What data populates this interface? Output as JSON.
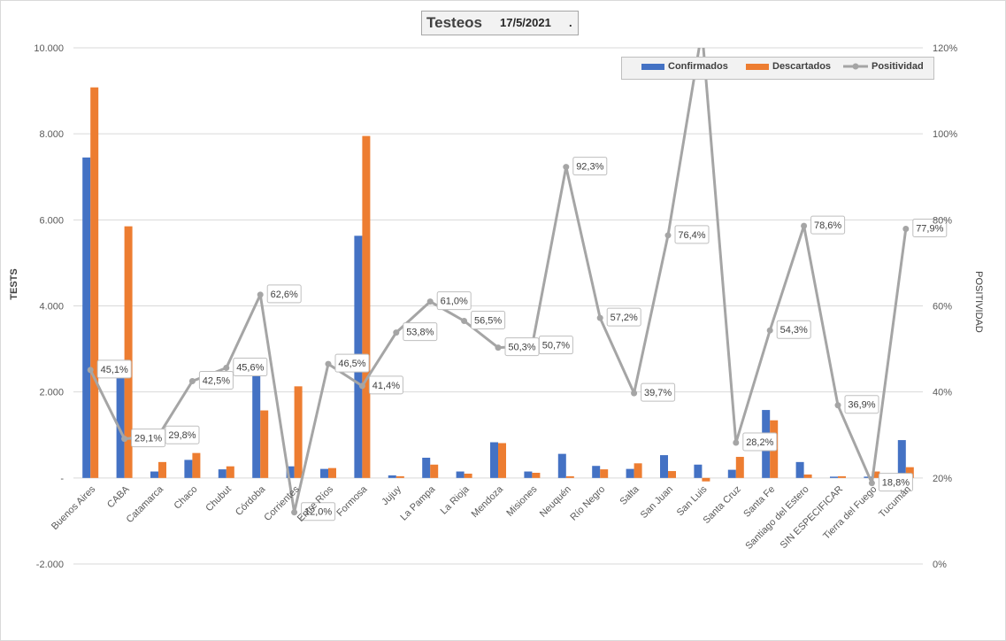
{
  "title": {
    "main": "Testeos",
    "date": "17/5/2021",
    "dot": "."
  },
  "legend": {
    "confirmados": "Confirmados",
    "descartados": "Descartados",
    "positividad": "Positividad"
  },
  "colors": {
    "confirmados": "#4472c4",
    "descartados": "#ed7d31",
    "positividad": "#a5a5a5",
    "gridline": "#d9d9d9"
  },
  "chart_data": {
    "type": "bar",
    "title": "Testeos 17/5/2021",
    "ylabel": "TESTS",
    "y2label": "POSITIVIDAD",
    "ylim": [
      -2000,
      10000
    ],
    "y2lim": [
      0,
      120
    ],
    "yticks": [
      "-2.000",
      "-",
      "2.000",
      "4.000",
      "6.000",
      "8.000",
      "10.000"
    ],
    "y2ticks": [
      "0%",
      "20%",
      "40%",
      "60%",
      "80%",
      "100%",
      "120%"
    ],
    "categories": [
      "Buenos Aires",
      "CABA",
      "Catamarca",
      "Chaco",
      "Chubut",
      "Córdoba",
      "Corrientes",
      "Entre Ríos",
      "Formosa",
      "Jujuy",
      "La Pampa",
      "La Rioja",
      "Mendoza",
      "Misiones",
      "Neuquén",
      "Río Negro",
      "Salta",
      "San Juan",
      "San Luis",
      "Santa Cruz",
      "Santa Fe",
      "Santiago del Estero",
      "SIN ESPECIFICAR",
      "Tierra del Fuego",
      "Tucumán"
    ],
    "series": [
      {
        "name": "Confirmados",
        "axis": "left",
        "values": [
          7450,
          2400,
          150,
          420,
          200,
          2400,
          270,
          210,
          5630,
          60,
          470,
          150,
          830,
          150,
          560,
          280,
          210,
          530,
          310,
          190,
          1580,
          370,
          30,
          30,
          880
        ]
      },
      {
        "name": "Descartados",
        "axis": "left",
        "values": [
          9080,
          5850,
          370,
          580,
          270,
          1570,
          2130,
          230,
          7950,
          40,
          310,
          100,
          810,
          120,
          40,
          200,
          340,
          160,
          -80,
          490,
          1340,
          80,
          40,
          150,
          250
        ]
      },
      {
        "name": "Positividad",
        "axis": "right",
        "type": "line",
        "values": [
          45.1,
          29.1,
          29.8,
          42.5,
          45.6,
          62.6,
          12.0,
          46.5,
          41.4,
          53.8,
          61.0,
          56.5,
          50.3,
          50.7,
          92.3,
          57.2,
          39.7,
          76.4,
          124.0,
          28.2,
          54.3,
          78.6,
          36.9,
          18.8,
          77.9
        ]
      }
    ],
    "data_labels": [
      "45,1%",
      "29,1%",
      "29,8%",
      "42,5%",
      "45,6%",
      "62,6%",
      "12,0%",
      "46,5%",
      "41,4%",
      "53,8%",
      "61,0%",
      "56,5%",
      "50,3%",
      "50,7%",
      "92,3%",
      "57,2%",
      "39,7%",
      "76,4%",
      "",
      "28,2%",
      "54,3%",
      "78,6%",
      "36,9%",
      "18,8%",
      "77,9%"
    ]
  }
}
